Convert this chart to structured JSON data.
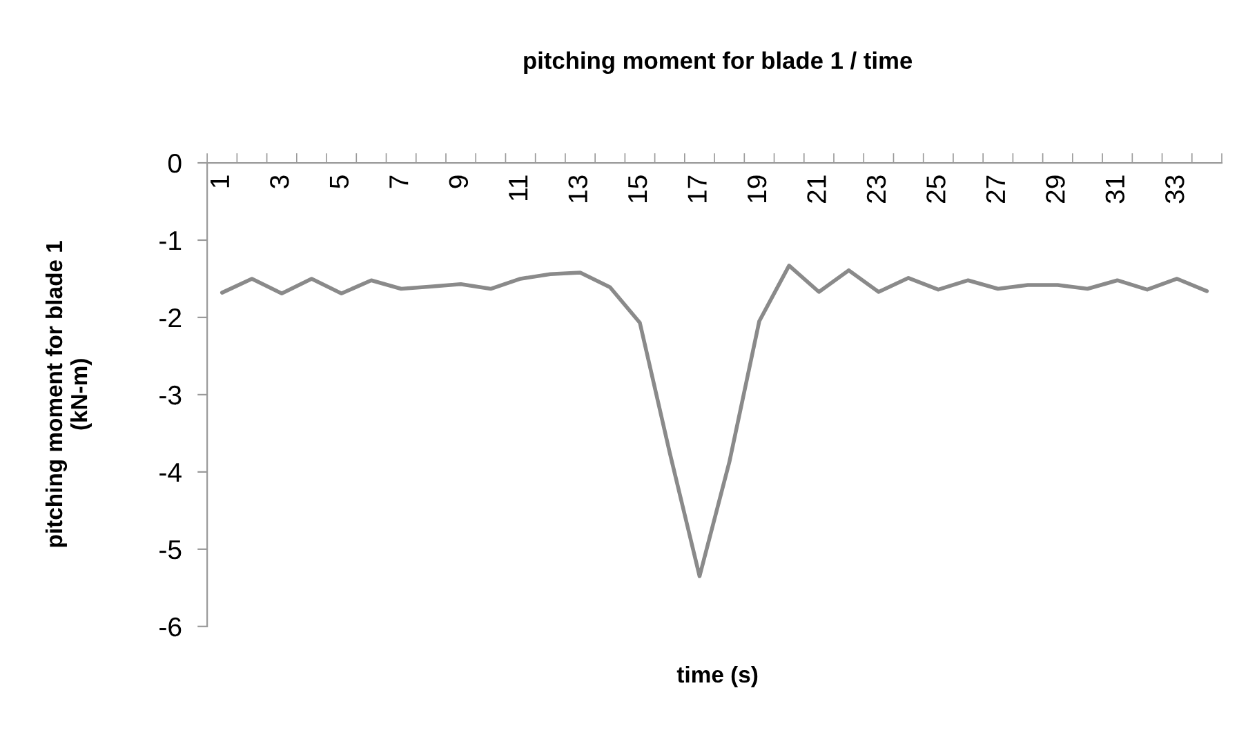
{
  "chart_data": {
    "type": "line",
    "title": "pitching moment for blade 1 / time",
    "xlabel": "time (s)",
    "ylabel": "pitching moment for blade 1\n(kN-m)",
    "categories": [
      "1",
      null,
      "3",
      null,
      "5",
      null,
      "7",
      null,
      "9",
      null,
      "11",
      null,
      "13",
      null,
      "15",
      null,
      "17",
      null,
      "19",
      null,
      "21",
      null,
      "23",
      null,
      "25",
      null,
      "27",
      null,
      "29",
      null,
      "31",
      null,
      "33",
      null
    ],
    "series": [
      {
        "color": "#8a8a8a",
        "values": [
          -1.68,
          -1.5,
          -1.69,
          -1.5,
          -1.69,
          -1.52,
          -1.63,
          -1.6,
          -1.57,
          -1.63,
          -1.5,
          -1.44,
          -1.42,
          -1.61,
          -2.07,
          -3.75,
          -5.35,
          -3.87,
          -2.05,
          -1.33,
          -1.67,
          -1.39,
          -1.67,
          -1.49,
          -1.64,
          -1.52,
          -1.63,
          -1.58,
          -1.58,
          -1.63,
          -1.52,
          -1.64,
          -1.5,
          -1.66
        ]
      }
    ],
    "ylim": [
      -6,
      0
    ],
    "yticks": [
      0,
      -1,
      -2,
      -3,
      -4,
      -5,
      -6
    ],
    "grid": false
  }
}
